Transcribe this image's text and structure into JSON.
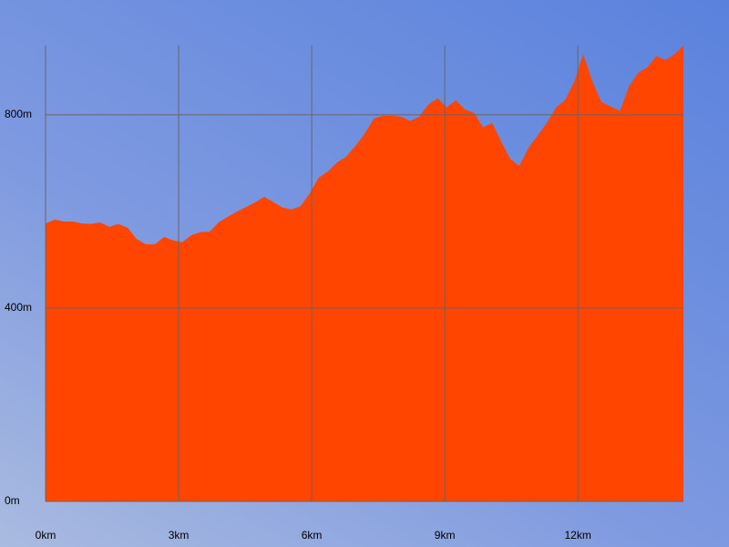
{
  "chart_data": {
    "type": "area",
    "color": "#ff4500",
    "grid": true,
    "x": [
      0,
      0.21,
      0.41,
      0.62,
      0.82,
      1.03,
      1.23,
      1.44,
      1.64,
      1.85,
      2.05,
      2.26,
      2.47,
      2.67,
      2.88,
      3.08,
      3.29,
      3.49,
      3.7,
      3.9,
      4.11,
      4.32,
      4.52,
      4.73,
      4.93,
      5.14,
      5.34,
      5.55,
      5.75,
      5.96,
      6.16,
      6.37,
      6.58,
      6.78,
      6.99,
      7.19,
      7.4,
      7.6,
      7.81,
      8.01,
      8.22,
      8.42,
      8.63,
      8.84,
      9.04,
      9.25,
      9.45,
      9.66,
      9.86,
      10.07,
      10.27,
      10.48,
      10.68,
      10.89,
      11.1,
      11.3,
      11.51,
      11.71,
      11.92,
      12.12,
      12.33,
      12.53,
      12.74,
      12.95,
      13.15,
      13.36,
      13.56,
      13.77,
      13.97,
      14.18,
      14.38
    ],
    "values": [
      575,
      583,
      579,
      579,
      575,
      574,
      577,
      568,
      574,
      566,
      543,
      532,
      532,
      547,
      540,
      536,
      551,
      557,
      558,
      577,
      589,
      600,
      609,
      619,
      630,
      619,
      608,
      604,
      611,
      638,
      670,
      683,
      702,
      713,
      736,
      760,
      792,
      798,
      798,
      796,
      787,
      796,
      821,
      834,
      815,
      830,
      811,
      804,
      774,
      783,
      745,
      708,
      694,
      732,
      758,
      783,
      815,
      830,
      868,
      925,
      868,
      826,
      817,
      808,
      858,
      887,
      898,
      921,
      913,
      925,
      943
    ],
    "xlim": [
      0,
      14.38
    ],
    "ylim": [
      0,
      943
    ],
    "xticks": [
      {
        "value": 0,
        "label": "0km"
      },
      {
        "value": 3,
        "label": "3km"
      },
      {
        "value": 6,
        "label": "6km"
      },
      {
        "value": 9,
        "label": "9km"
      },
      {
        "value": 12,
        "label": "12km"
      }
    ],
    "yticks": [
      {
        "value": 0,
        "label": "0m"
      },
      {
        "value": 400,
        "label": "400m"
      },
      {
        "value": 800,
        "label": "800m"
      }
    ]
  }
}
